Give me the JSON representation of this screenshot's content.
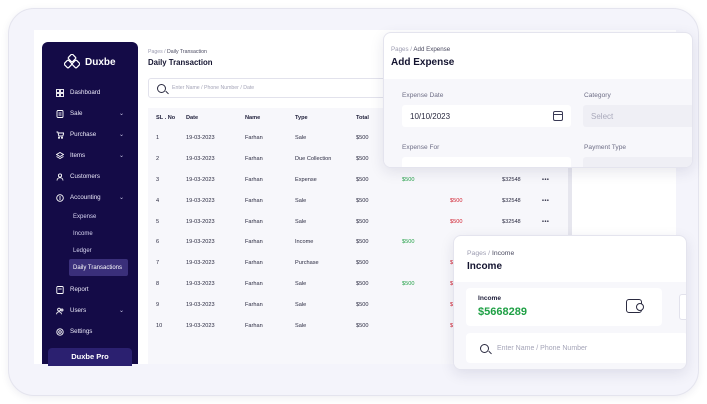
{
  "sidebar": {
    "brand": "Duxbe",
    "items": [
      {
        "label": "Dashboard",
        "icon": "dashboard-icon",
        "chevron": false
      },
      {
        "label": "Sale",
        "icon": "sale-icon",
        "chevron": true
      },
      {
        "label": "Purchase",
        "icon": "cart-icon",
        "chevron": true
      },
      {
        "label": "Items",
        "icon": "items-icon",
        "chevron": true
      },
      {
        "label": "Customers",
        "icon": "customers-icon",
        "chevron": false
      },
      {
        "label": "Accounting",
        "icon": "accounting-icon",
        "chevron": true
      }
    ],
    "sub_items": [
      "Expense",
      "Income",
      "Ledger",
      "Daily Transactions"
    ],
    "bottom_items": [
      {
        "label": "Report",
        "icon": "report-icon",
        "chevron": false
      },
      {
        "label": "Users",
        "icon": "users-icon",
        "chevron": true
      },
      {
        "label": "Settings",
        "icon": "settings-icon",
        "chevron": false
      }
    ],
    "pro_label": "Duxbe Pro"
  },
  "transactions": {
    "crumb_root": "Pages",
    "crumb_current": "Daily Transaction",
    "title": "Daily Transaction",
    "search_placeholder": "Enter Name / Phone Number / Date",
    "columns": [
      "SL . No",
      "Date",
      "Name",
      "Type",
      "Total"
    ],
    "rows": [
      {
        "sl": "1",
        "date": "19-03-2023",
        "name": "Farhan",
        "type": "Sale",
        "total": "$500",
        "in": "",
        "out": "",
        "balance": ""
      },
      {
        "sl": "2",
        "date": "19-03-2023",
        "name": "Farhan",
        "type": "Due Collection",
        "total": "$500",
        "in": "",
        "out": "",
        "balance": ""
      },
      {
        "sl": "3",
        "date": "19-03-2023",
        "name": "Farhan",
        "type": "Expense",
        "total": "$500",
        "in": "$500",
        "out": "",
        "balance": "$32548"
      },
      {
        "sl": "4",
        "date": "19-03-2023",
        "name": "Farhan",
        "type": "Sale",
        "total": "$500",
        "in": "",
        "out": "$500",
        "balance": "$32548"
      },
      {
        "sl": "5",
        "date": "19-03-2023",
        "name": "Farhan",
        "type": "Sale",
        "total": "$500",
        "in": "",
        "out": "$500",
        "balance": "$32548"
      },
      {
        "sl": "6",
        "date": "19-03-2023",
        "name": "Farhan",
        "type": "Income",
        "total": "$500",
        "in": "$500",
        "out": "",
        "balance": ""
      },
      {
        "sl": "7",
        "date": "19-03-2023",
        "name": "Farhan",
        "type": "Purchase",
        "total": "$500",
        "in": "",
        "out": "$",
        "balance": ""
      },
      {
        "sl": "8",
        "date": "19-03-2023",
        "name": "Farhan",
        "type": "Sale",
        "total": "$500",
        "in": "$500",
        "out": "$",
        "balance": ""
      },
      {
        "sl": "9",
        "date": "19-03-2023",
        "name": "Farhan",
        "type": "Sale",
        "total": "$500",
        "in": "",
        "out": "$",
        "balance": ""
      },
      {
        "sl": "10",
        "date": "19-03-2023",
        "name": "Farhan",
        "type": "Sale",
        "total": "$500",
        "in": "",
        "out": "$",
        "balance": ""
      }
    ],
    "row_action_visible_rows": [
      3,
      4,
      5
    ]
  },
  "expense": {
    "crumb_root": "Pages",
    "crumb_current": "Add Expense",
    "title": "Add Expense",
    "date_label": "Expense Date",
    "date_value": "10/10/2023",
    "category_label": "Category",
    "category_value": "Select",
    "for_label": "Expense For",
    "payment_label": "Payment Type"
  },
  "income": {
    "crumb_root": "Pages",
    "crumb_current": "Income",
    "title": "Income",
    "card_label": "Income",
    "card_value": "$5668289",
    "search_placeholder": "Enter Name / Phone Number"
  },
  "colors": {
    "sidebar": "#140b47",
    "positive": "#24a148",
    "negative": "#d11f2e"
  }
}
